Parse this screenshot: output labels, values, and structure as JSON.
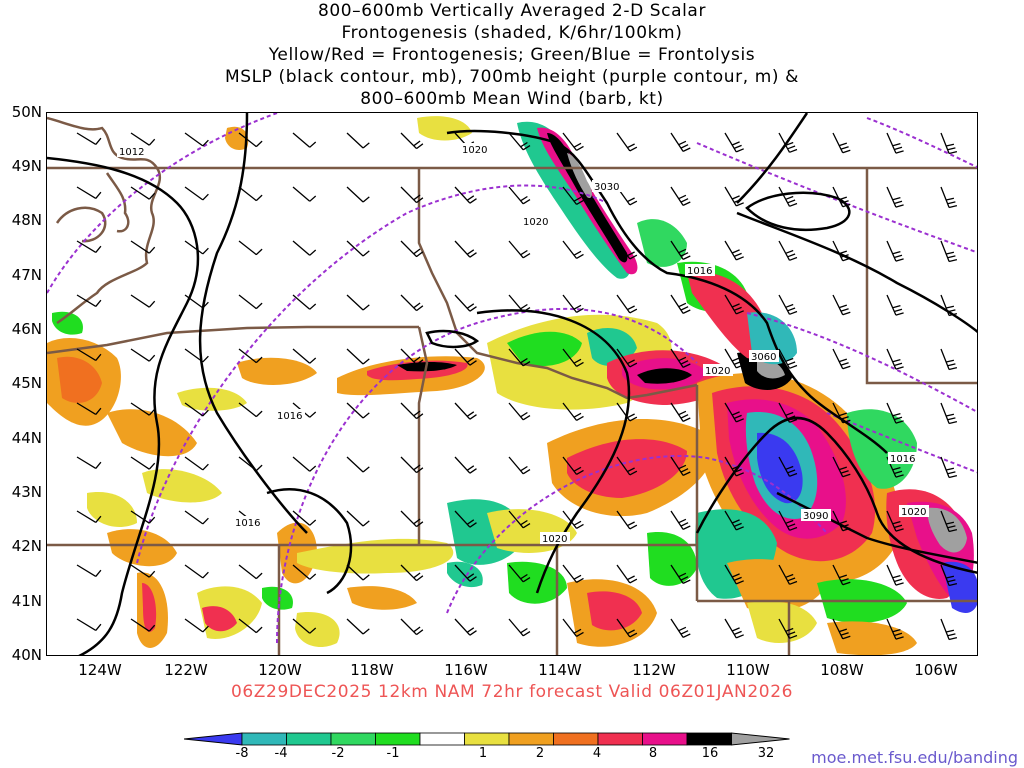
{
  "title": {
    "lines": [
      "800–600mb Vertically Averaged 2-D Scalar",
      "Frontogenesis (shaded, K/6hr/100km)",
      "Yellow/Red = Frontogenesis;  Green/Blue = Frontolysis",
      "MSLP (black contour, mb), 700mb height (purple contour, m) &",
      "800–600mb Mean Wind (barb, kt)"
    ]
  },
  "map": {
    "lat_labels": [
      "50N",
      "49N",
      "48N",
      "47N",
      "46N",
      "45N",
      "44N",
      "43N",
      "42N",
      "41N",
      "40N"
    ],
    "lon_labels": [
      "124W",
      "122W",
      "120W",
      "118W",
      "116W",
      "114W",
      "112W",
      "110W",
      "108W",
      "106W"
    ],
    "contour_labels": [
      {
        "text": "1012"
      },
      {
        "text": "1020"
      },
      {
        "text": "3030"
      },
      {
        "text": "1020"
      },
      {
        "text": "1016"
      },
      {
        "text": "3060"
      },
      {
        "text": "1020"
      },
      {
        "text": "1016"
      },
      {
        "text": "1016"
      },
      {
        "text": "3090"
      },
      {
        "text": "1020"
      },
      {
        "text": "1016"
      },
      {
        "text": "1020"
      }
    ],
    "colors": {
      "state_border": "#7b5a46",
      "mslp": "#000000",
      "height": "#9b30d0",
      "barb": "#000000"
    }
  },
  "valid_line": "06Z29DEC2025 12km NAM 72hr forecast Valid 06Z01JAN2026",
  "colorbar": {
    "colors": [
      "#3a3af0",
      "#30b8b8",
      "#20c890",
      "#30d860",
      "#20dd20",
      "#ffffff",
      "#e8e040",
      "#f0a020",
      "#f07020",
      "#f03050",
      "#e8108a",
      "#000000",
      "#a0a0a0"
    ],
    "labels": [
      "-8",
      "-4",
      "-2",
      "-1",
      "1",
      "2",
      "4",
      "8",
      "16",
      "32"
    ]
  },
  "credit": "moe.met.fsu.edu/banding"
}
